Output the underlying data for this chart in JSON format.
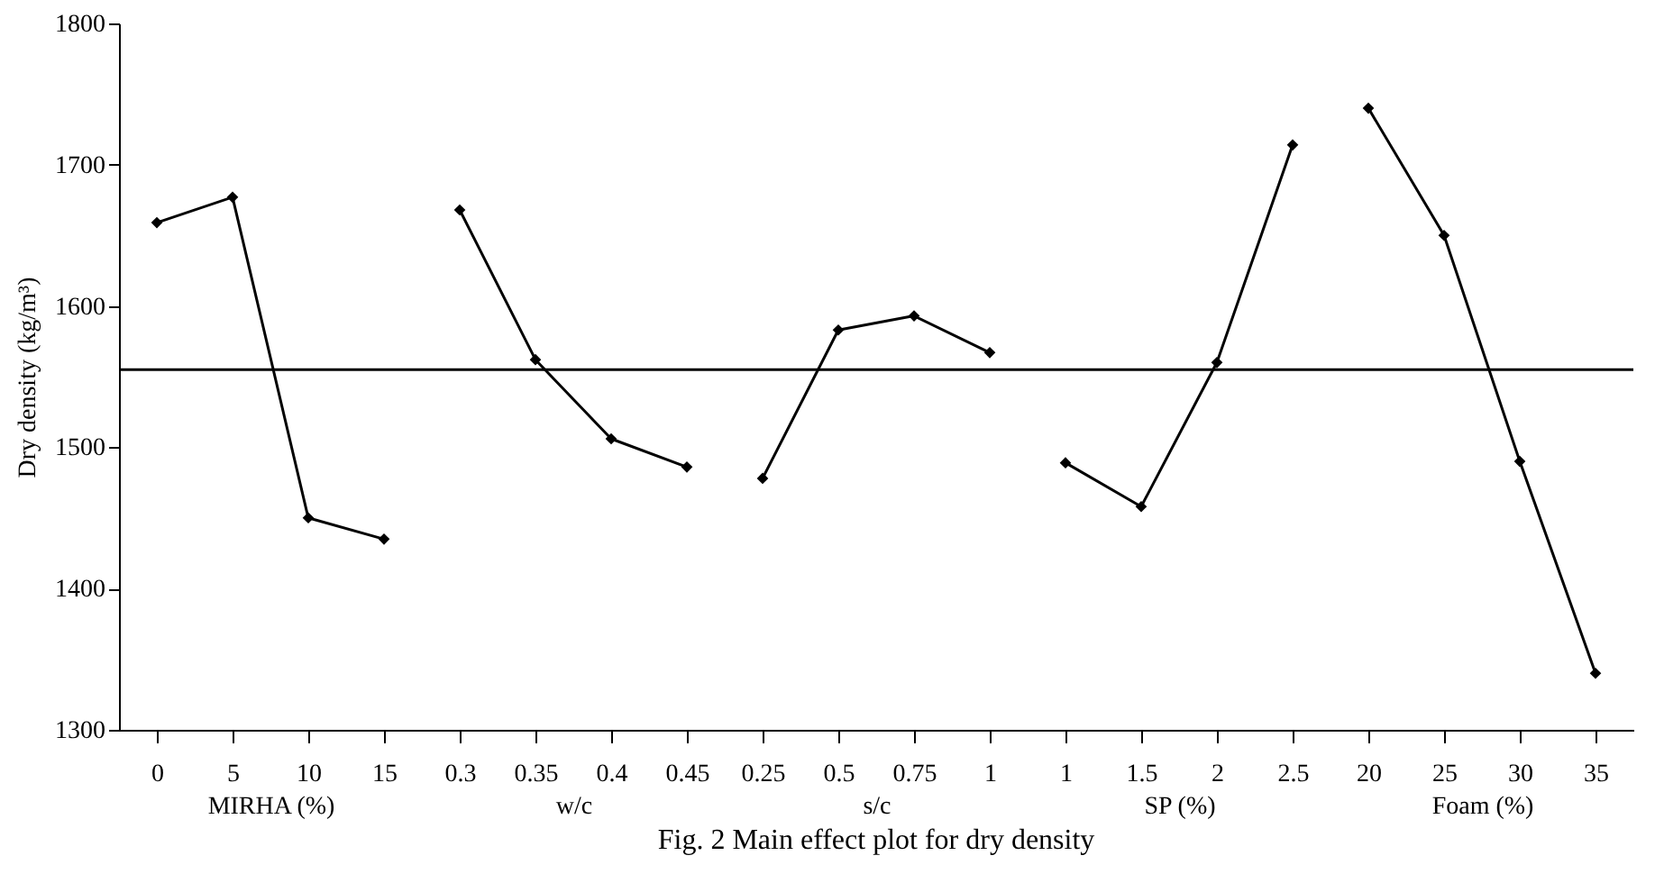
{
  "chart_data": [
    {
      "type": "line",
      "ylabel": "Dry density (kg/m³)",
      "xlabel": "MIRHA (%)",
      "categories": [
        "0",
        "5",
        "10",
        "15"
      ],
      "series": [
        {
          "color": "#000000",
          "values": [
            1659,
            1677,
            1450,
            1435
          ]
        }
      ],
      "ylim": [
        1300,
        1800
      ],
      "yticks": [
        1300,
        1400,
        1500,
        1600,
        1700,
        1800
      ],
      "ref_lines": [
        {
          "axis": "y",
          "value": 1555,
          "color": "#000000"
        }
      ],
      "marker": "diamond",
      "grid": false
    },
    {
      "type": "line",
      "xlabel": "w/c",
      "categories": [
        "0.3",
        "0.35",
        "0.4",
        "0.45"
      ],
      "series": [
        {
          "color": "#000000",
          "values": [
            1668,
            1562,
            1506,
            1486
          ]
        }
      ],
      "ylim": [
        1300,
        1800
      ],
      "tick_labels": "x",
      "ref_lines": [
        {
          "axis": "y",
          "value": 1555,
          "color": "#000000"
        }
      ],
      "marker": "diamond",
      "grid": false
    },
    {
      "type": "line",
      "title": "Fig. 2    Main effect plot for dry density",
      "xlabel": "s/c",
      "categories": [
        "0.25",
        "0.5",
        "0.75",
        "1"
      ],
      "series": [
        {
          "color": "#000000",
          "values": [
            1478,
            1583,
            1593,
            1567
          ]
        }
      ],
      "ylim": [
        1300,
        1800
      ],
      "tick_labels": "x",
      "ref_lines": [
        {
          "axis": "y",
          "value": 1555,
          "color": "#000000"
        }
      ],
      "marker": "diamond",
      "grid": false
    },
    {
      "type": "line",
      "xlabel": "SP (%)",
      "categories": [
        "1",
        "1.5",
        "2",
        "2.5"
      ],
      "series": [
        {
          "color": "#000000",
          "values": [
            1489,
            1458,
            1560,
            1714
          ]
        }
      ],
      "ylim": [
        1300,
        1800
      ],
      "tick_labels": "x",
      "ref_lines": [
        {
          "axis": "y",
          "value": 1555,
          "color": "#000000"
        }
      ],
      "marker": "diamond",
      "grid": false
    },
    {
      "type": "line",
      "xlabel": "Foam (%)",
      "categories": [
        "20",
        "25",
        "30",
        "35"
      ],
      "series": [
        {
          "color": "#000000",
          "values": [
            1740,
            1650,
            1490,
            1340
          ]
        }
      ],
      "ylim": [
        1300,
        1800
      ],
      "tick_labels": "x",
      "ref_lines": [
        {
          "axis": "y",
          "value": 1555,
          "color": "#000000"
        }
      ],
      "marker": "diamond",
      "grid": false
    }
  ]
}
